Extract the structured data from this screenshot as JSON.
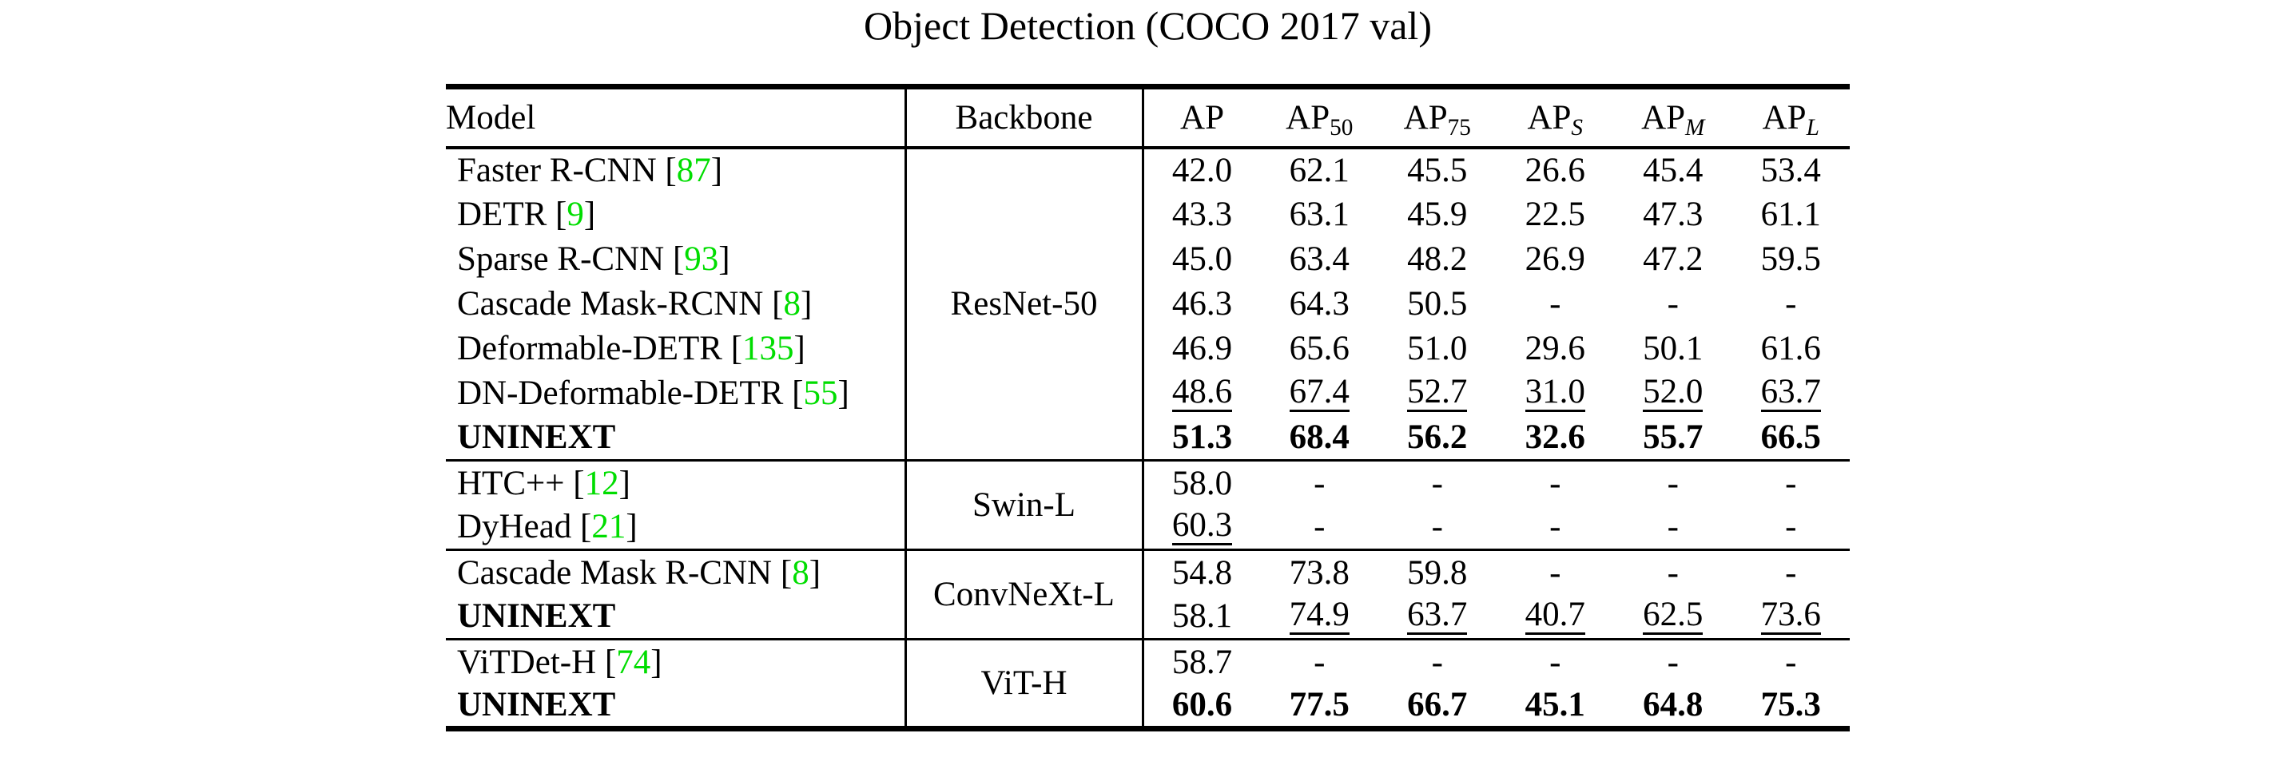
{
  "title": "Object Detection (COCO 2017 val)",
  "colors": {
    "background": "#ffffff",
    "text": "#000000",
    "citation_green": "#00dd00",
    "rule": "#000000"
  },
  "table": {
    "headers": {
      "model": "Model",
      "backbone": "Backbone",
      "metrics": [
        {
          "base": "AP",
          "sub": "",
          "italic_sub": false
        },
        {
          "base": "AP",
          "sub": "50",
          "italic_sub": false
        },
        {
          "base": "AP",
          "sub": "75",
          "italic_sub": false
        },
        {
          "base": "AP",
          "sub": "S",
          "italic_sub": true
        },
        {
          "base": "AP",
          "sub": "M",
          "italic_sub": true
        },
        {
          "base": "AP",
          "sub": "L",
          "italic_sub": true
        }
      ]
    },
    "rows": [
      {
        "model": "Faster R-CNN",
        "cite": "87",
        "bold": false,
        "group_start": false,
        "backbone": {
          "label": "ResNet-50",
          "rowspan": 7
        },
        "values": [
          "42.0",
          "62.1",
          "45.5",
          "26.6",
          "45.4",
          "53.4"
        ],
        "bold_values": false,
        "underline": [
          false,
          false,
          false,
          false,
          false,
          false
        ]
      },
      {
        "model": "DETR",
        "cite": "9",
        "bold": false,
        "group_start": false,
        "backbone": null,
        "values": [
          "43.3",
          "63.1",
          "45.9",
          "22.5",
          "47.3",
          "61.1"
        ],
        "bold_values": false,
        "underline": [
          false,
          false,
          false,
          false,
          false,
          false
        ]
      },
      {
        "model": "Sparse R-CNN",
        "cite": "93",
        "bold": false,
        "group_start": false,
        "backbone": null,
        "values": [
          "45.0",
          "63.4",
          "48.2",
          "26.9",
          "47.2",
          "59.5"
        ],
        "bold_values": false,
        "underline": [
          false,
          false,
          false,
          false,
          false,
          false
        ]
      },
      {
        "model": "Cascade Mask-RCNN",
        "cite": "8",
        "bold": false,
        "group_start": false,
        "backbone": null,
        "values": [
          "46.3",
          "64.3",
          "50.5",
          "-",
          "-",
          "-"
        ],
        "bold_values": false,
        "underline": [
          false,
          false,
          false,
          false,
          false,
          false
        ]
      },
      {
        "model": "Deformable-DETR",
        "cite": "135",
        "bold": false,
        "group_start": false,
        "backbone": null,
        "values": [
          "46.9",
          "65.6",
          "51.0",
          "29.6",
          "50.1",
          "61.6"
        ],
        "bold_values": false,
        "underline": [
          false,
          false,
          false,
          false,
          false,
          false
        ]
      },
      {
        "model": "DN-Deformable-DETR",
        "cite": "55",
        "bold": false,
        "group_start": false,
        "backbone": null,
        "values": [
          "48.6",
          "67.4",
          "52.7",
          "31.0",
          "52.0",
          "63.7"
        ],
        "bold_values": false,
        "underline": [
          true,
          true,
          true,
          true,
          true,
          true
        ]
      },
      {
        "model": "UNINEXT",
        "cite": "",
        "bold": true,
        "group_start": false,
        "backbone": null,
        "values": [
          "51.3",
          "68.4",
          "56.2",
          "32.6",
          "55.7",
          "66.5"
        ],
        "bold_values": true,
        "underline": [
          false,
          false,
          false,
          false,
          false,
          false
        ]
      },
      {
        "model": "HTC++",
        "cite": "12",
        "bold": false,
        "group_start": true,
        "backbone": {
          "label": "Swin-L",
          "rowspan": 2
        },
        "values": [
          "58.0",
          "-",
          "-",
          "-",
          "-",
          "-"
        ],
        "bold_values": false,
        "underline": [
          false,
          false,
          false,
          false,
          false,
          false
        ]
      },
      {
        "model": "DyHead",
        "cite": "21",
        "bold": false,
        "group_start": false,
        "backbone": null,
        "values": [
          "60.3",
          "-",
          "-",
          "-",
          "-",
          "-"
        ],
        "bold_values": false,
        "underline": [
          true,
          false,
          false,
          false,
          false,
          false
        ]
      },
      {
        "model": "Cascade Mask R-CNN",
        "cite": "8",
        "bold": false,
        "group_start": true,
        "backbone": {
          "label": "ConvNeXt-L",
          "rowspan": 2
        },
        "values": [
          "54.8",
          "73.8",
          "59.8",
          "-",
          "-",
          "-"
        ],
        "bold_values": false,
        "underline": [
          false,
          false,
          false,
          false,
          false,
          false
        ]
      },
      {
        "model": "UNINEXT",
        "cite": "",
        "bold": true,
        "group_start": false,
        "backbone": null,
        "values": [
          "58.1",
          "74.9",
          "63.7",
          "40.7",
          "62.5",
          "73.6"
        ],
        "bold_values": false,
        "underline": [
          false,
          true,
          true,
          true,
          true,
          true
        ]
      },
      {
        "model": "ViTDet-H",
        "cite": "74",
        "bold": false,
        "group_start": true,
        "backbone": {
          "label": "ViT-H",
          "rowspan": 2
        },
        "values": [
          "58.7",
          "-",
          "-",
          "-",
          "-",
          "-"
        ],
        "bold_values": false,
        "underline": [
          false,
          false,
          false,
          false,
          false,
          false
        ]
      },
      {
        "model": "UNINEXT",
        "cite": "",
        "bold": true,
        "group_start": false,
        "backbone": null,
        "values": [
          "60.6",
          "77.5",
          "66.7",
          "45.1",
          "64.8",
          "75.3"
        ],
        "bold_values": true,
        "underline": [
          false,
          false,
          false,
          false,
          false,
          false
        ]
      }
    ]
  }
}
